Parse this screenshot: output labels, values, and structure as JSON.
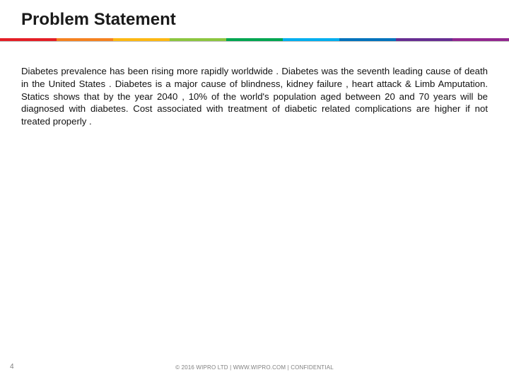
{
  "title": "Problem Statement",
  "rainbow_colors": [
    "#e41e26",
    "#f58220",
    "#fdb813",
    "#8cc63f",
    "#00a651",
    "#00aeef",
    "#0072bc",
    "#662d91",
    "#92278f"
  ],
  "body": "Diabetes prevalence has been rising more rapidly worldwide . Diabetes was the seventh leading cause of death in the United States . Diabetes is a major cause of blindness, kidney failure , heart attack & Limb Amputation. Statics shows that by the year 2040 , 10% of the world's population aged between 20 and 70 years will be diagnosed with diabetes. Cost associated with treatment of diabetic related complications are higher if not treated properly .",
  "page_number": "4",
  "footer": "© 2016 WIPRO LTD | WWW.WIPRO.COM | CONFIDENTIAL"
}
